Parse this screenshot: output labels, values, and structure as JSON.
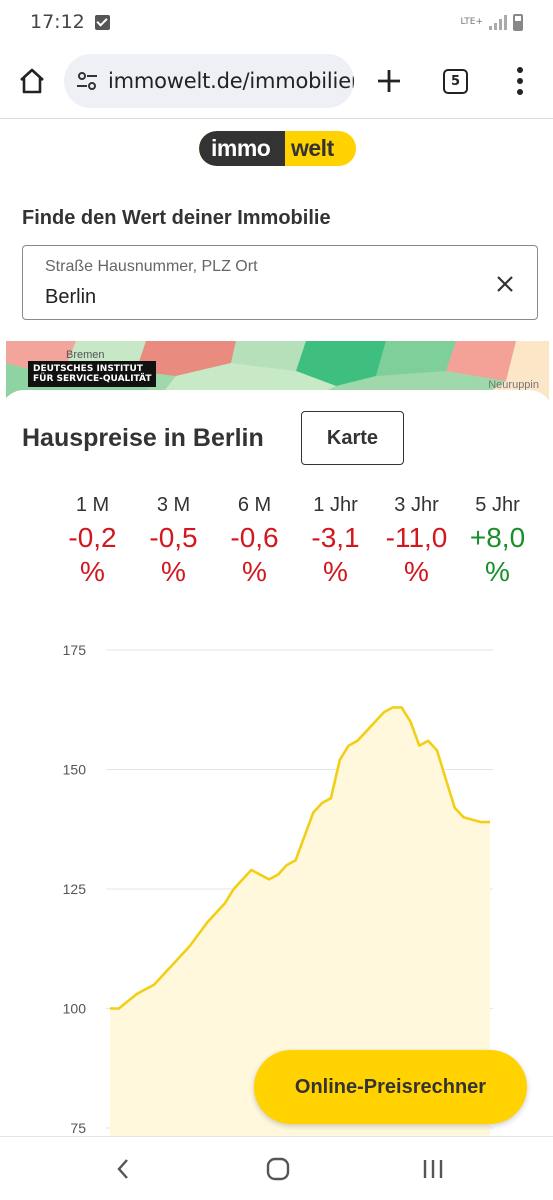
{
  "status_bar": {
    "time": "17:12",
    "network": "LTE+"
  },
  "browser": {
    "url": "immowelt.de/immobilier",
    "tab_count": "5"
  },
  "logo": {
    "left": "immo",
    "right": "welt"
  },
  "search": {
    "title": "Finde den Wert deiner Immobilie",
    "label": "Straße Hausnummer, PLZ Ort",
    "value": "Berlin"
  },
  "map": {
    "badge_line1": "DEUTSCHES INSTITUT",
    "badge_line2": "FÜR SERVICE-QUALITÄT",
    "city_left": "Bremen",
    "city_right": "Neuruppin"
  },
  "prices": {
    "title": "Hauspreise in Berlin",
    "map_button": "Karte",
    "periods": [
      {
        "label": "1 M",
        "value": "-0,2",
        "unit": "%",
        "trend": "down"
      },
      {
        "label": "3 M",
        "value": "-0,5",
        "unit": "%",
        "trend": "down"
      },
      {
        "label": "6 M",
        "value": "-0,6",
        "unit": "%",
        "trend": "down"
      },
      {
        "label": "1 Jhr",
        "value": "-3,1",
        "unit": "%",
        "trend": "down"
      },
      {
        "label": "3 Jhr",
        "value": "-11,0",
        "unit": "%",
        "trend": "down"
      },
      {
        "label": "5 Jhr",
        "value": "+8,0",
        "unit": "%",
        "trend": "up"
      }
    ]
  },
  "chart_data": {
    "type": "area",
    "title": "",
    "xlabel": "",
    "ylabel": "",
    "ylim": [
      75,
      175
    ],
    "yticks": [
      175,
      150,
      125,
      100,
      75
    ],
    "grid": true,
    "values": [
      100,
      100,
      101.5,
      103,
      104,
      105,
      107,
      109,
      111,
      113,
      115.5,
      118,
      120,
      122,
      125,
      127,
      129,
      128,
      127,
      128,
      130,
      131,
      136,
      141,
      143,
      144,
      152,
      155,
      156,
      158,
      160,
      162,
      163,
      163,
      160,
      155,
      156,
      154,
      148,
      142,
      140,
      139.5,
      139,
      139
    ],
    "colors": {
      "line": "#f2cf16",
      "fill": "#fff8dc",
      "grid": "#e6e6e6"
    }
  },
  "fab": {
    "label": "Online-Preisrechner"
  },
  "colors": {
    "negative": "#d0181e",
    "positive": "#1a8f2a",
    "accent": "#ffd200"
  }
}
